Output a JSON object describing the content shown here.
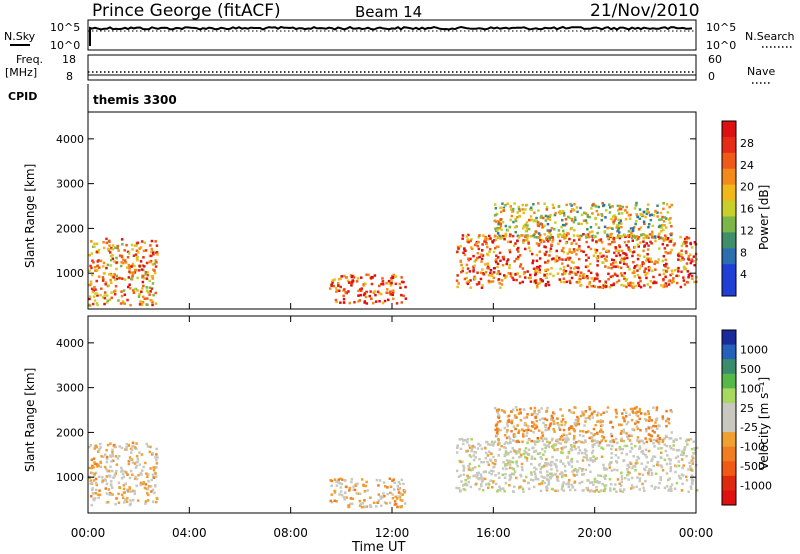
{
  "header": {
    "title": "Prince George (fitACF)",
    "beam": "Beam 14",
    "date": "21/Nov/2010"
  },
  "top_panels": {
    "nsky_label": "N.Sky",
    "nsearch_label": "N.Search",
    "noise_ticks_left": [
      "10^5",
      "10^0"
    ],
    "noise_ticks_right": [
      "10^5",
      "10^0"
    ],
    "freq_label_1": "Freq.",
    "freq_label_2": "[MHz]",
    "freq_ticks": [
      "18",
      "8"
    ],
    "nave_label": "Nave",
    "nave_ticks": [
      "60",
      "0"
    ],
    "cpid_label": "CPID",
    "cpid_value": "themis 3300"
  },
  "colors": {
    "power_scale": [
      "#1f3fd6",
      "#1f3fd6",
      "#2c6fb0",
      "#3f8f6a",
      "#7ab648",
      "#c8cf2a",
      "#f0b818",
      "#f48a1a",
      "#f05a18",
      "#e62a16",
      "#dd0f10"
    ],
    "velocity_scale": [
      "#1b2a9a",
      "#2560bb",
      "#3a8c6a",
      "#55b848",
      "#a8d860",
      "#c8c8c0",
      "#c8c8c0",
      "#f0a030",
      "#f07d20",
      "#f05a14",
      "#e02a10",
      "#e01010"
    ]
  },
  "chart_data": [
    {
      "type": "heatmap",
      "panel": "power",
      "ylabel": "Slant Range [km]",
      "yticks": [
        "1000",
        "2000",
        "3000",
        "4000"
      ],
      "ylim": [
        200,
        4600
      ],
      "colorbar_label": "Power [dB]",
      "colorbar_ticks": [
        "4",
        "8",
        "12",
        "16",
        "20",
        "24",
        "28"
      ],
      "range": [
        0,
        30
      ],
      "features": [
        {
          "t0": 0.0,
          "t1": 2.7,
          "r0": 300,
          "r1": 1800,
          "level": 0.7
        },
        {
          "t0": 9.5,
          "t1": 12.5,
          "r0": 350,
          "r1": 1000,
          "level": 0.85
        },
        {
          "t0": 14.5,
          "t1": 24.0,
          "r0": 700,
          "r1": 1900,
          "level": 0.8
        },
        {
          "t0": 16.0,
          "t1": 23.0,
          "r0": 1800,
          "r1": 2600,
          "level": 0.5
        }
      ]
    },
    {
      "type": "heatmap",
      "panel": "velocity",
      "ylabel": "Slant Range [km]",
      "yticks": [
        "1000",
        "2000",
        "3000",
        "4000"
      ],
      "ylim": [
        200,
        4600
      ],
      "colorbar_label": "Velocity [m s⁻¹]",
      "colorbar_ticks": [
        "1000",
        "500",
        "100",
        "25",
        "-25",
        "-100",
        "-500",
        "-1000"
      ],
      "range": [
        -1000,
        1000
      ],
      "features": [
        {
          "t0": 0.0,
          "t1": 2.7,
          "r0": 400,
          "r1": 1800,
          "value": -150
        },
        {
          "t0": 9.5,
          "t1": 12.5,
          "r0": 350,
          "r1": 1000,
          "value": -200
        },
        {
          "t0": 14.5,
          "t1": 24.0,
          "r0": 700,
          "r1": 1900,
          "value": 0
        },
        {
          "t0": 16.0,
          "t1": 23.0,
          "r0": 1800,
          "r1": 2600,
          "value": -300
        }
      ]
    }
  ],
  "x_axis": {
    "label": "Time UT",
    "ticks": [
      "00:00",
      "04:00",
      "08:00",
      "12:00",
      "16:00",
      "20:00",
      "00:00"
    ],
    "xlim": [
      0,
      24
    ]
  }
}
